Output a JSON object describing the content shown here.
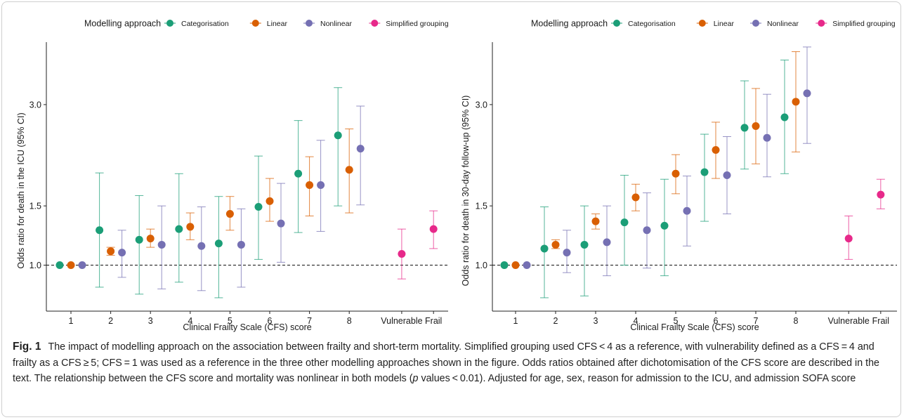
{
  "figure": {
    "label": "Fig. 1",
    "caption_parts": [
      "The impact of modelling approach on the association between frailty and short-term mortality. Simplified grouping used CFS < 4 as a reference, with vulnerability defined as a CFS = 4 and frailty as a CFS ≥ 5; CFS = 1 was used as a reference in the three other modelling approaches shown in the figure. Odds ratios obtained after dichotomisation of the CFS score are described in the text. The relationship between the CFS score and mortality was nonlinear in both models (",
      "p",
      " values < 0.01). Adjusted for age, sex, reason for admission to the ICU, and admission SOFA score"
    ]
  },
  "colors": {
    "Categorisation": "#1b9e77",
    "Linear": "#d95f02",
    "Nonlinear": "#7570b3",
    "Simplified grouping": "#e7298a"
  },
  "chart_data": [
    {
      "type": "scatter",
      "subtype": "point-range (odds ratio with 95% CI)",
      "legend_title": "Modelling approach",
      "legend_entries": [
        "Categorisation",
        "Linear",
        "Nonlinear",
        "Simplified grouping"
      ],
      "legend_position": "top",
      "xlabel": "Clinical Frailty Scale (CFS) score",
      "ylabel": "Odds ratio for death in the ICU (95% CI)",
      "categories": [
        "1",
        "2",
        "3",
        "4",
        "5",
        "6",
        "7",
        "8",
        "Vulnerable",
        "Frail"
      ],
      "y_scale": "log",
      "y_ticks": [
        "1.0",
        "1.5",
        "3.0"
      ],
      "ylim": [
        0.73,
        4.6
      ],
      "reference_line": 1.0,
      "grid": false,
      "series": [
        {
          "name": "Categorisation",
          "categories": [
            "1",
            "2",
            "3",
            "4",
            "5",
            "6",
            "7",
            "8"
          ],
          "values": [
            1.0,
            1.27,
            1.19,
            1.28,
            1.16,
            1.49,
            1.87,
            2.43
          ],
          "ci_low": [
            1.0,
            0.86,
            0.82,
            0.89,
            0.8,
            1.04,
            1.25,
            1.5
          ],
          "ci_high": [
            1.0,
            1.88,
            1.61,
            1.87,
            1.6,
            2.11,
            2.69,
            3.37
          ]
        },
        {
          "name": "Linear",
          "categories": [
            "1",
            "2",
            "3",
            "4",
            "5",
            "6",
            "7",
            "8"
          ],
          "values": [
            1.0,
            1.1,
            1.2,
            1.3,
            1.42,
            1.55,
            1.73,
            1.92
          ],
          "ci_low": [
            1.0,
            1.07,
            1.13,
            1.19,
            1.27,
            1.35,
            1.4,
            1.43
          ],
          "ci_high": [
            1.0,
            1.13,
            1.28,
            1.43,
            1.6,
            1.81,
            2.1,
            2.54
          ]
        },
        {
          "name": "Nonlinear",
          "categories": [
            "1",
            "2",
            "3",
            "4",
            "5",
            "6",
            "7",
            "8"
          ],
          "values": [
            1.0,
            1.09,
            1.15,
            1.14,
            1.15,
            1.33,
            1.73,
            2.22
          ],
          "ci_low": [
            1.0,
            0.92,
            0.85,
            0.84,
            0.86,
            1.02,
            1.26,
            1.51
          ],
          "ci_high": [
            1.0,
            1.27,
            1.5,
            1.49,
            1.47,
            1.75,
            2.35,
            2.97
          ]
        },
        {
          "name": "Simplified grouping",
          "categories": [
            "Vulnerable",
            "Frail"
          ],
          "values": [
            1.08,
            1.28
          ],
          "ci_low": [
            0.91,
            1.12
          ],
          "ci_high": [
            1.28,
            1.45
          ]
        }
      ]
    },
    {
      "type": "scatter",
      "subtype": "point-range (odds ratio with 95% CI)",
      "legend_title": "Modelling approach",
      "legend_entries": [
        "Categorisation",
        "Linear",
        "Nonlinear",
        "Simplified grouping"
      ],
      "legend_position": "top",
      "xlabel": "Clinical Frailty Scale (CFS) score",
      "ylabel": "Odds ratio for death in 30-day follow-up (95% CI)",
      "categories": [
        "1",
        "2",
        "3",
        "4",
        "5",
        "6",
        "7",
        "8",
        "Vulnerable",
        "Frail"
      ],
      "y_scale": "log",
      "y_ticks": [
        "1.0",
        "1.5",
        "3.0"
      ],
      "ylim": [
        0.73,
        4.6
      ],
      "reference_line": 1.0,
      "grid": false,
      "series": [
        {
          "name": "Categorisation",
          "categories": [
            "1",
            "2",
            "3",
            "4",
            "5",
            "6",
            "7",
            "8"
          ],
          "values": [
            1.0,
            1.12,
            1.15,
            1.34,
            1.31,
            1.89,
            2.56,
            2.75
          ],
          "ci_low": [
            1.0,
            0.8,
            0.81,
            1.0,
            0.93,
            1.35,
            1.93,
            1.87
          ],
          "ci_high": [
            1.0,
            1.49,
            1.5,
            1.85,
            1.8,
            2.45,
            3.53,
            4.07
          ]
        },
        {
          "name": "Linear",
          "categories": [
            "1",
            "2",
            "3",
            "4",
            "5",
            "6",
            "7",
            "8"
          ],
          "values": [
            1.0,
            1.15,
            1.35,
            1.59,
            1.87,
            2.2,
            2.59,
            3.06
          ],
          "ci_low": [
            1.0,
            1.12,
            1.28,
            1.45,
            1.63,
            1.81,
            2.0,
            2.17
          ],
          "ci_high": [
            1.0,
            1.19,
            1.42,
            1.74,
            2.13,
            2.66,
            3.35,
            4.31
          ]
        },
        {
          "name": "Nonlinear",
          "categories": [
            "1",
            "2",
            "3",
            "4",
            "5",
            "6",
            "7",
            "8"
          ],
          "values": [
            1.0,
            1.09,
            1.17,
            1.27,
            1.45,
            1.85,
            2.39,
            3.24
          ],
          "ci_low": [
            1.0,
            0.95,
            0.93,
            0.98,
            1.14,
            1.42,
            1.83,
            2.3
          ],
          "ci_high": [
            1.0,
            1.27,
            1.5,
            1.64,
            1.84,
            2.41,
            3.22,
            4.45
          ]
        },
        {
          "name": "Simplified grouping",
          "categories": [
            "Vulnerable",
            "Frail"
          ],
          "values": [
            1.2,
            1.62
          ],
          "ci_low": [
            1.04,
            1.47
          ],
          "ci_high": [
            1.4,
            1.8
          ]
        }
      ]
    }
  ]
}
